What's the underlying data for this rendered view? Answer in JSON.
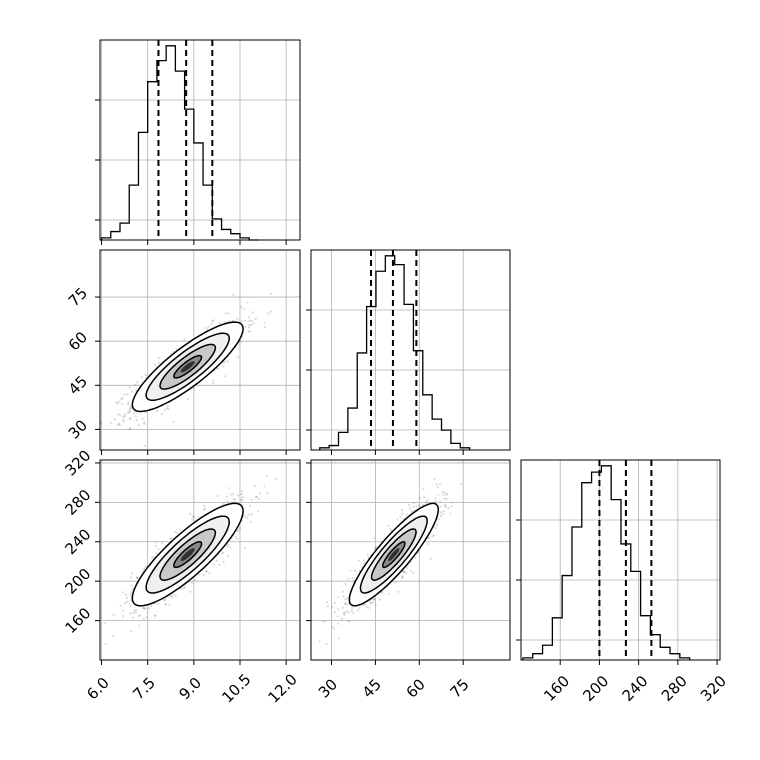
{
  "chart_data": {
    "type": "corner",
    "parameters": [
      {
        "id": "p0",
        "ticks": [
          6.0,
          7.5,
          9.0,
          10.5,
          12.0
        ],
        "tick_labels": [
          "6.0",
          "7.5",
          "9.0",
          "10.5",
          "12.0"
        ],
        "range": [
          5.95,
          12.45
        ],
        "quantiles": [
          7.85,
          8.75,
          9.6
        ],
        "hist": {
          "start": 6.0,
          "bin_width": 0.3,
          "counts": [
            1,
            4,
            8,
            26,
            51,
            75,
            85,
            92,
            80,
            62,
            46,
            26,
            10,
            5,
            3,
            1,
            0
          ]
        }
      },
      {
        "id": "p1",
        "ticks": [
          30,
          45,
          60,
          75
        ],
        "tick_labels": [
          "30",
          "45",
          "60",
          "75"
        ],
        "range": [
          23,
          91
        ],
        "quantiles": [
          43.5,
          51,
          59
        ],
        "hist": {
          "start": 26,
          "bin_width": 3.2,
          "counts": [
            1,
            2,
            8,
            19,
            44,
            65,
            81,
            88,
            84,
            66,
            45,
            25,
            14,
            9,
            3,
            1
          ]
        }
      },
      {
        "id": "p2",
        "ticks": [
          160,
          200,
          240,
          280,
          320
        ],
        "tick_labels": [
          "160",
          "200",
          "240",
          "280",
          "320"
        ],
        "range": [
          120,
          323
        ],
        "quantiles": [
          200,
          227,
          253
        ],
        "hist": {
          "start": 122,
          "bin_width": 10,
          "counts": [
            1,
            3,
            7,
            20,
            40,
            63,
            84,
            89,
            92,
            76,
            55,
            42,
            21,
            12,
            6,
            3,
            1
          ]
        }
      }
    ],
    "pairs": [
      {
        "x": "p0",
        "y": "p1",
        "center": [
          8.8,
          51.3
        ],
        "sd": [
          0.9,
          7.6
        ],
        "corr": 0.85,
        "contour_levels": [
          0.5,
          1.0,
          1.5,
          2.0
        ]
      },
      {
        "x": "p0",
        "y": "p2",
        "center": [
          8.8,
          227
        ],
        "sd": [
          0.9,
          26
        ],
        "corr": 0.85,
        "contour_levels": [
          0.5,
          1.0,
          1.5,
          2.0
        ]
      },
      {
        "x": "p1",
        "y": "p2",
        "center": [
          51.3,
          227
        ],
        "sd": [
          7.6,
          26
        ],
        "corr": 0.88,
        "contour_levels": [
          0.5,
          1.0,
          1.5,
          2.0
        ]
      }
    ],
    "hist_ticks": [
      0.1,
      0.4,
      0.7
    ],
    "grid": true,
    "colors": {
      "lines": "#000000",
      "points": "#555555",
      "shading": [
        "#ffffff",
        "#f0f0f0",
        "#c8c8c8",
        "#888888",
        "#303030"
      ]
    }
  }
}
